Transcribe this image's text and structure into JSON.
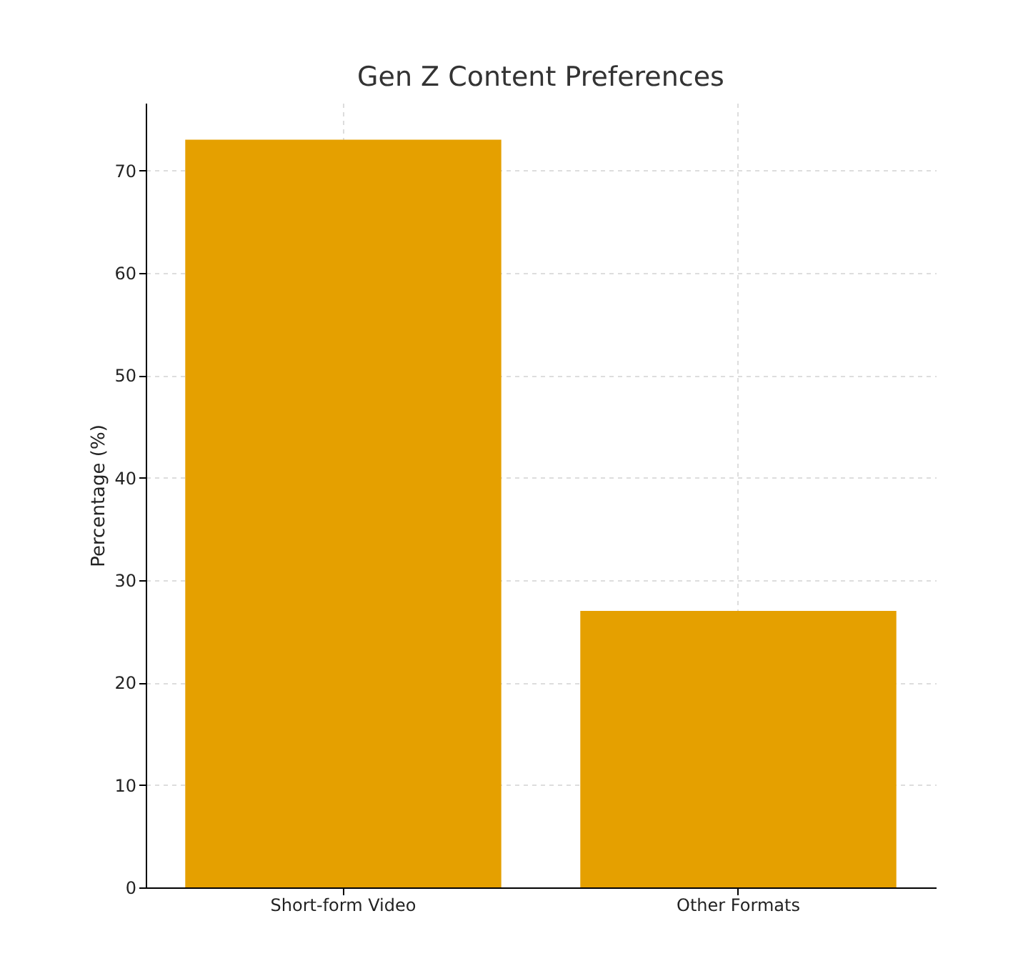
{
  "chart_data": {
    "type": "bar",
    "title": "Gen Z Content Preferences",
    "ylabel": "Percentage (%)",
    "categories": [
      "Short-form Video",
      "Other Formats"
    ],
    "values": [
      73,
      27
    ],
    "color": "#e5a000",
    "ylim": [
      0,
      76.6
    ],
    "yticks": [
      0,
      10,
      20,
      30,
      40,
      50,
      60,
      70
    ],
    "grid": true
  }
}
